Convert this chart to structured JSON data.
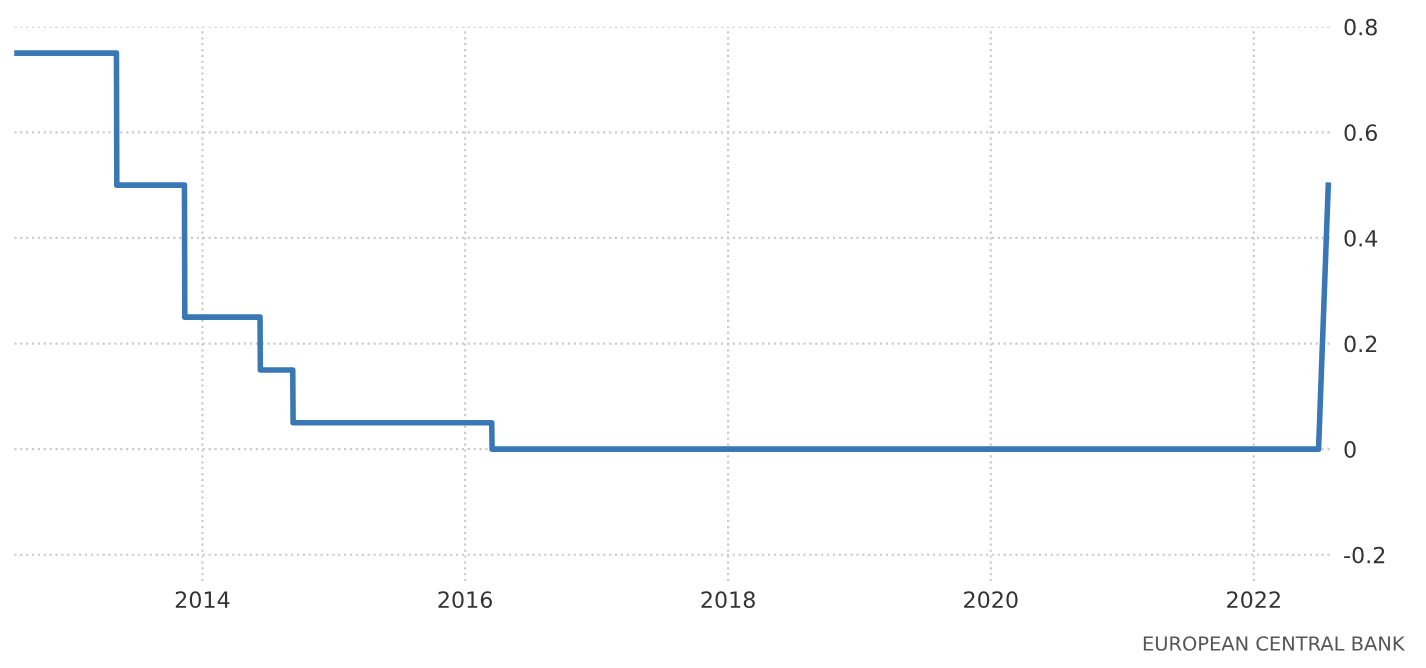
{
  "chart_data": {
    "type": "line",
    "x": [
      "2012-07-27",
      "2013-05-07",
      "2013-05-08",
      "2013-11-12",
      "2013-11-13",
      "2014-06-10",
      "2014-06-11",
      "2014-09-09",
      "2014-09-10",
      "2016-03-15",
      "2016-03-16",
      "2022-06-30",
      "2022-07-27"
    ],
    "series": [
      {
        "color": "#3a78b5",
        "values": [
          0.75,
          0.75,
          0.5,
          0.5,
          0.25,
          0.25,
          0.15,
          0.15,
          0.05,
          0.05,
          0,
          0,
          0.5
        ]
      }
    ],
    "xlim": [
      "2012-07-27",
      "2022-08-10"
    ],
    "xticks": [
      {
        "value": "2014-01-01",
        "label": "2014"
      },
      {
        "value": "2016-01-01",
        "label": "2016"
      },
      {
        "value": "2018-01-01",
        "label": "2018"
      },
      {
        "value": "2020-01-01",
        "label": "2020"
      },
      {
        "value": "2022-01-01",
        "label": "2022"
      }
    ],
    "ylim": [
      -0.25,
      0.8
    ],
    "yticks": [
      -0.2,
      0,
      0.2,
      0.4,
      0.6,
      0.8
    ],
    "grid": true,
    "line_style": "solid",
    "annotations": [
      "EUROPEAN CENTRAL BANK"
    ]
  }
}
